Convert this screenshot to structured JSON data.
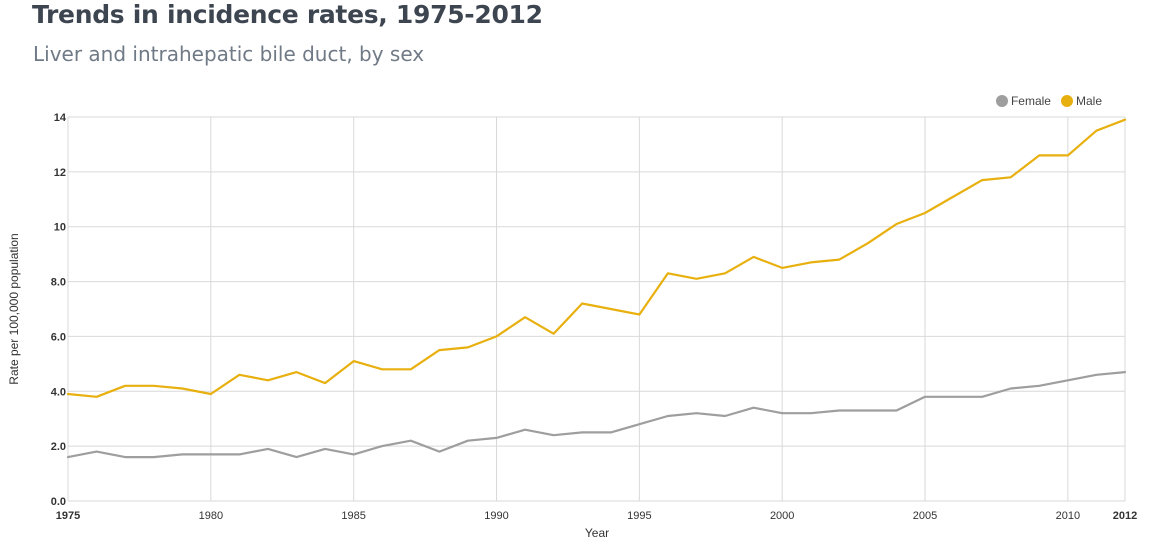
{
  "header": {
    "title": "Trends in incidence rates, 1975-2012",
    "subtitle": "Liver and intrahepatic bile duct, by sex"
  },
  "colors": {
    "female": "#9e9e9e",
    "male": "#e8b00f",
    "grid": "#d9d9d9"
  },
  "chart_data": {
    "type": "line",
    "title": "Trends in incidence rates, 1975-2012",
    "subtitle": "Liver and intrahepatic bile duct, by sex",
    "xlabel": "Year",
    "ylabel": "Rate per 100,000 population",
    "xlim": [
      1975,
      2012
    ],
    "ylim": [
      0,
      14
    ],
    "grid": true,
    "legend_position": "top-right",
    "x_ticks": [
      "1975",
      "1980",
      "1985",
      "1990",
      "1995",
      "2000",
      "2005",
      "2010",
      "2012"
    ],
    "y_ticks": [
      "0.0",
      "2.0",
      "4.0",
      "6.0",
      "8.0",
      "10",
      "12",
      "14"
    ],
    "x": [
      1975,
      1976,
      1977,
      1978,
      1979,
      1980,
      1981,
      1982,
      1983,
      1984,
      1985,
      1986,
      1987,
      1988,
      1989,
      1990,
      1991,
      1992,
      1993,
      1994,
      1995,
      1996,
      1997,
      1998,
      1999,
      2000,
      2001,
      2002,
      2003,
      2004,
      2005,
      2006,
      2007,
      2008,
      2009,
      2010,
      2011,
      2012
    ],
    "series": [
      {
        "name": "Female",
        "values": [
          1.6,
          1.8,
          1.6,
          1.6,
          1.7,
          1.7,
          1.7,
          1.9,
          1.6,
          1.9,
          1.7,
          2.0,
          2.2,
          1.8,
          2.2,
          2.3,
          2.6,
          2.4,
          2.5,
          2.5,
          2.8,
          3.1,
          3.2,
          3.1,
          3.4,
          3.2,
          3.2,
          3.3,
          3.3,
          3.3,
          3.8,
          3.8,
          3.8,
          4.1,
          4.2,
          4.4,
          4.6,
          4.7
        ]
      },
      {
        "name": "Male",
        "values": [
          3.9,
          3.8,
          4.2,
          4.2,
          4.1,
          3.9,
          4.6,
          4.4,
          4.7,
          4.3,
          5.1,
          4.8,
          4.8,
          5.5,
          5.6,
          6.0,
          6.7,
          6.1,
          7.2,
          7.0,
          6.8,
          8.3,
          8.1,
          8.3,
          8.9,
          8.5,
          8.7,
          8.8,
          9.4,
          10.1,
          10.5,
          11.1,
          11.7,
          11.8,
          12.6,
          12.6,
          13.5,
          13.9
        ]
      }
    ]
  }
}
